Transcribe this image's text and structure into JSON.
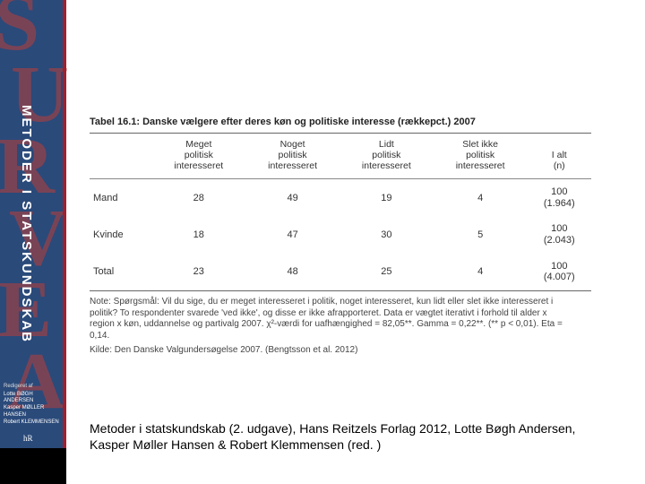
{
  "spine": {
    "title": "METODER I STATSKUNDSKAB",
    "decor_letters": [
      "S",
      "U",
      "R",
      "V",
      "E",
      "A"
    ],
    "redigeret": "Redigeret af",
    "authors": [
      "Lotte BØGH ANDERSEN",
      "Kasper MØLLER HANSEN",
      "Robert KLEMMENSEN"
    ],
    "logo": "hR",
    "bg_color": "#2a4a7a",
    "red_color": "#a02030",
    "letter_color": "rgba(200,60,50,0.5)"
  },
  "table": {
    "caption": "Tabel 16.1: Danske vælgere efter deres køn og politiske interesse (rækkepct.) 2007",
    "columns": [
      "",
      "Meget\npolitisk\ninteresseret",
      "Noget\npolitisk\ninteresseret",
      "Lidt\npolitisk\ninteresseret",
      "Slet ikke\npolitisk\ninteresseret",
      "I alt\n(n)"
    ],
    "rows": [
      {
        "label": "Mand",
        "cells": [
          "28",
          "49",
          "19",
          "4"
        ],
        "total_top": "100",
        "total_n": "(1.964)"
      },
      {
        "label": "Kvinde",
        "cells": [
          "18",
          "47",
          "30",
          "5"
        ],
        "total_top": "100",
        "total_n": "(2.043)"
      },
      {
        "label": "Total",
        "cells": [
          "23",
          "48",
          "25",
          "4"
        ],
        "total_top": "100",
        "total_n": "(4.007)"
      }
    ],
    "note": "Note: Spørgsmål: Vil du sige, du er meget interesseret i politik, noget interesseret, kun lidt eller slet ikke interesseret i politik? To respondenter svarede 'ved ikke', og disse er ikke afrapporteret. Data er vægtet iterativt i forhold til alder x region x køn, uddannelse og partivalg 2007. χ²-værdi for uafhængighed = 82,05**. Gamma = 0,22**. (** p < 0,01). Eta = 0,14.",
    "source": "Kilde: Den Danske Valgundersøgelse 2007. (Bengtsson et al. 2012)",
    "border_color": "#666666",
    "font_color": "#333333"
  },
  "citation": "Metoder i statskundskab (2. udgave), Hans Reitzels Forlag 2012, Lotte Bøgh Andersen, Kasper Møller Hansen & Robert Klemmensen (red. )"
}
